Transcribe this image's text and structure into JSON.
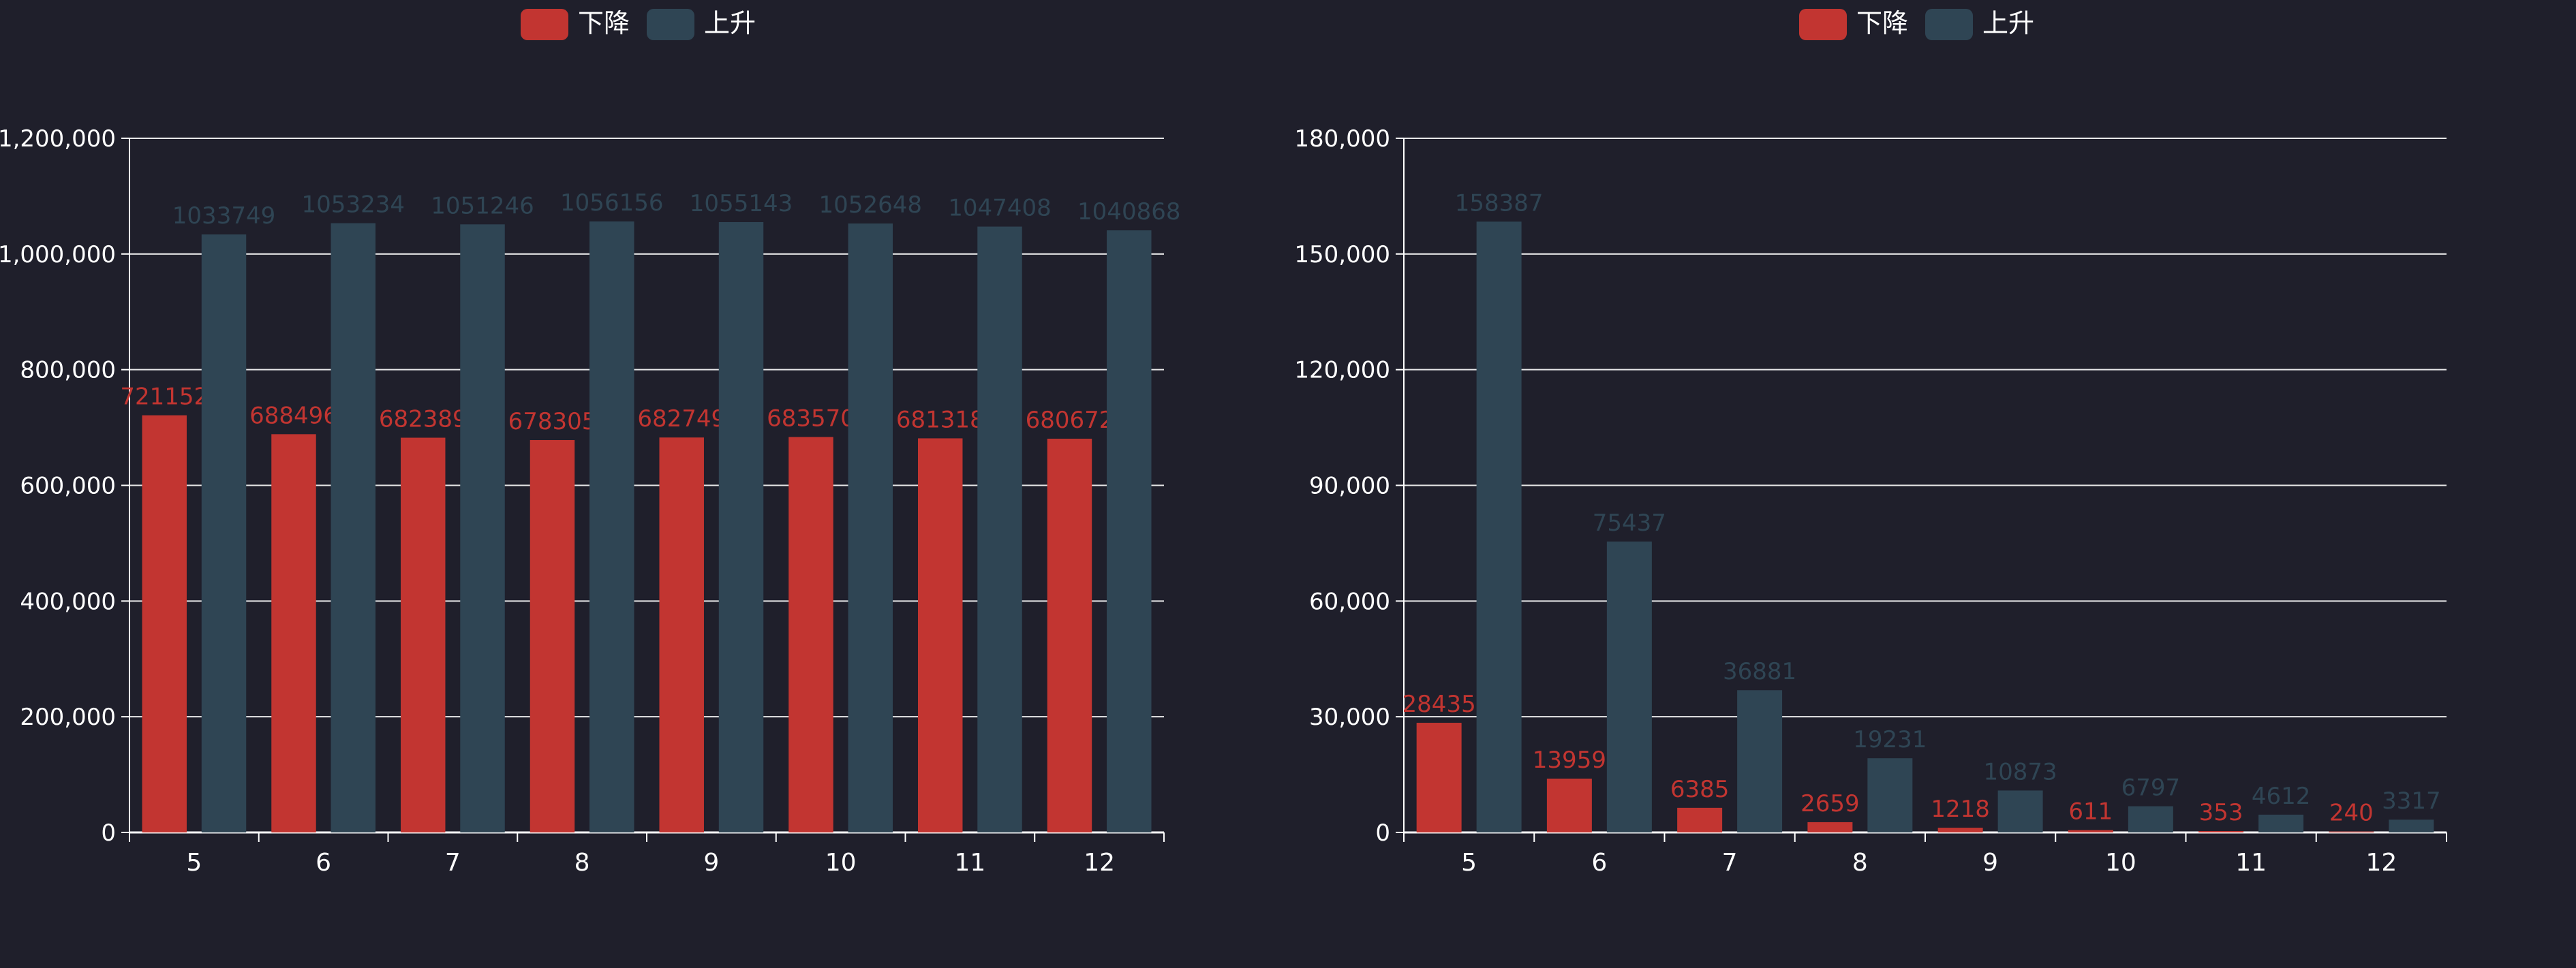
{
  "theme": {
    "background": "#1f1f2b",
    "axis_color": "#ffffff",
    "grid_color": "#ffffff",
    "text_color": "#ffffff"
  },
  "chart_data": [
    {
      "type": "bar",
      "categories": [
        "5",
        "6",
        "7",
        "8",
        "9",
        "10",
        "11",
        "12"
      ],
      "series": [
        {
          "name": "下降",
          "color": "#c23531",
          "values": [
            721152,
            688496,
            682389,
            678305,
            682749,
            683570,
            681318,
            680672
          ]
        },
        {
          "name": "上升",
          "color": "#2f4554",
          "values": [
            1033749,
            1053234,
            1051246,
            1056156,
            1055143,
            1052648,
            1047408,
            1040868
          ]
        }
      ],
      "ylim": [
        0,
        1200000
      ],
      "yticks": [
        0,
        200000,
        400000,
        600000,
        800000,
        1000000,
        1200000
      ],
      "ytick_labels": [
        "0",
        "200,000",
        "400,000",
        "600,000",
        "800,000",
        "1,000,000",
        "1,200,000"
      ],
      "grid": true,
      "legend": "top-center",
      "data_labels": true
    },
    {
      "type": "bar",
      "categories": [
        "5",
        "6",
        "7",
        "8",
        "9",
        "10",
        "11",
        "12"
      ],
      "series": [
        {
          "name": "下降",
          "color": "#c23531",
          "values": [
            28435,
            13959,
            6385,
            2659,
            1218,
            611,
            353,
            240
          ]
        },
        {
          "name": "上升",
          "color": "#2f4554",
          "values": [
            158387,
            75437,
            36881,
            19231,
            10873,
            6797,
            4612,
            3317
          ]
        }
      ],
      "ylim": [
        0,
        180000
      ],
      "yticks": [
        0,
        30000,
        60000,
        90000,
        120000,
        150000,
        180000
      ],
      "ytick_labels": [
        "0",
        "30,000",
        "60,000",
        "90,000",
        "120,000",
        "150,000",
        "180,000"
      ],
      "grid": true,
      "legend": "top-center",
      "data_labels": true
    }
  ]
}
